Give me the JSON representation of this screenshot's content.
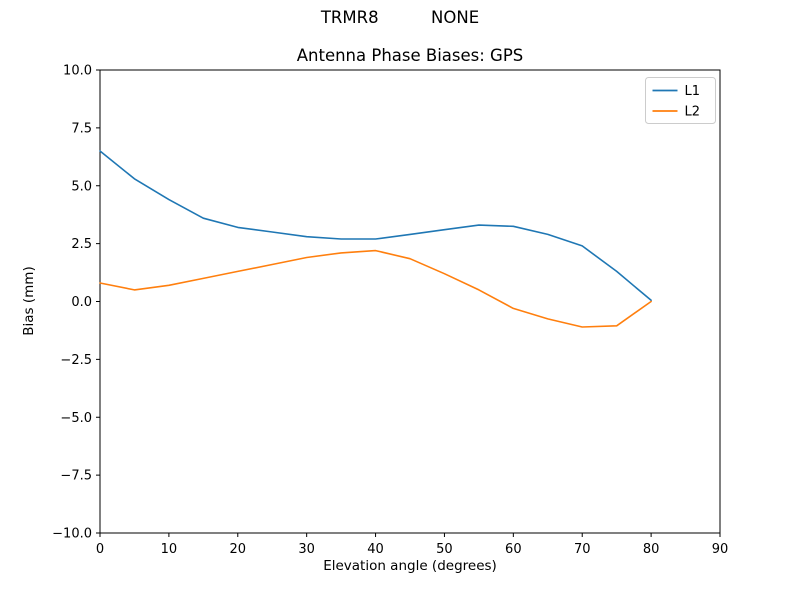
{
  "chart_data": {
    "type": "line",
    "suptitle": "TRMR8          NONE",
    "title": "Antenna Phase Biases: GPS",
    "xlabel": "Elevation angle (degrees)",
    "ylabel": "Bias (mm)",
    "xlim": [
      0,
      90
    ],
    "ylim": [
      -10,
      10
    ],
    "xticks": [
      0,
      10,
      20,
      30,
      40,
      50,
      60,
      70,
      80,
      90
    ],
    "yticks": [
      -10,
      -7.5,
      -5,
      -2.5,
      0,
      2.5,
      5,
      7.5,
      10
    ],
    "ytick_labels": [
      "−10.0",
      "−7.5",
      "−5.0",
      "−2.5",
      "0.0",
      "2.5",
      "5.0",
      "7.5",
      "10.0"
    ],
    "x": [
      0,
      5,
      10,
      15,
      20,
      25,
      30,
      35,
      40,
      45,
      50,
      55,
      60,
      65,
      70,
      75,
      80
    ],
    "series": [
      {
        "name": "L1",
        "color": "#1f77b4",
        "values": [
          6.5,
          5.3,
          4.4,
          3.6,
          3.2,
          3.0,
          2.8,
          2.7,
          2.7,
          2.9,
          3.1,
          3.3,
          3.25,
          2.9,
          2.4,
          1.3,
          0.05
        ]
      },
      {
        "name": "L2",
        "color": "#ff7f0e",
        "values": [
          0.8,
          0.5,
          0.7,
          1.0,
          1.3,
          1.6,
          1.9,
          2.1,
          2.2,
          1.85,
          1.2,
          0.5,
          -0.3,
          -0.75,
          -1.1,
          -1.05,
          0.0
        ]
      }
    ],
    "legend": {
      "position": "upper right",
      "entries": [
        "L1",
        "L2"
      ]
    },
    "grid": false
  },
  "colors": {
    "background": "#ffffff",
    "spine": "#000000",
    "tick_text": "#000000",
    "legend_border": "#cccccc",
    "legend_background": "#ffffff"
  }
}
